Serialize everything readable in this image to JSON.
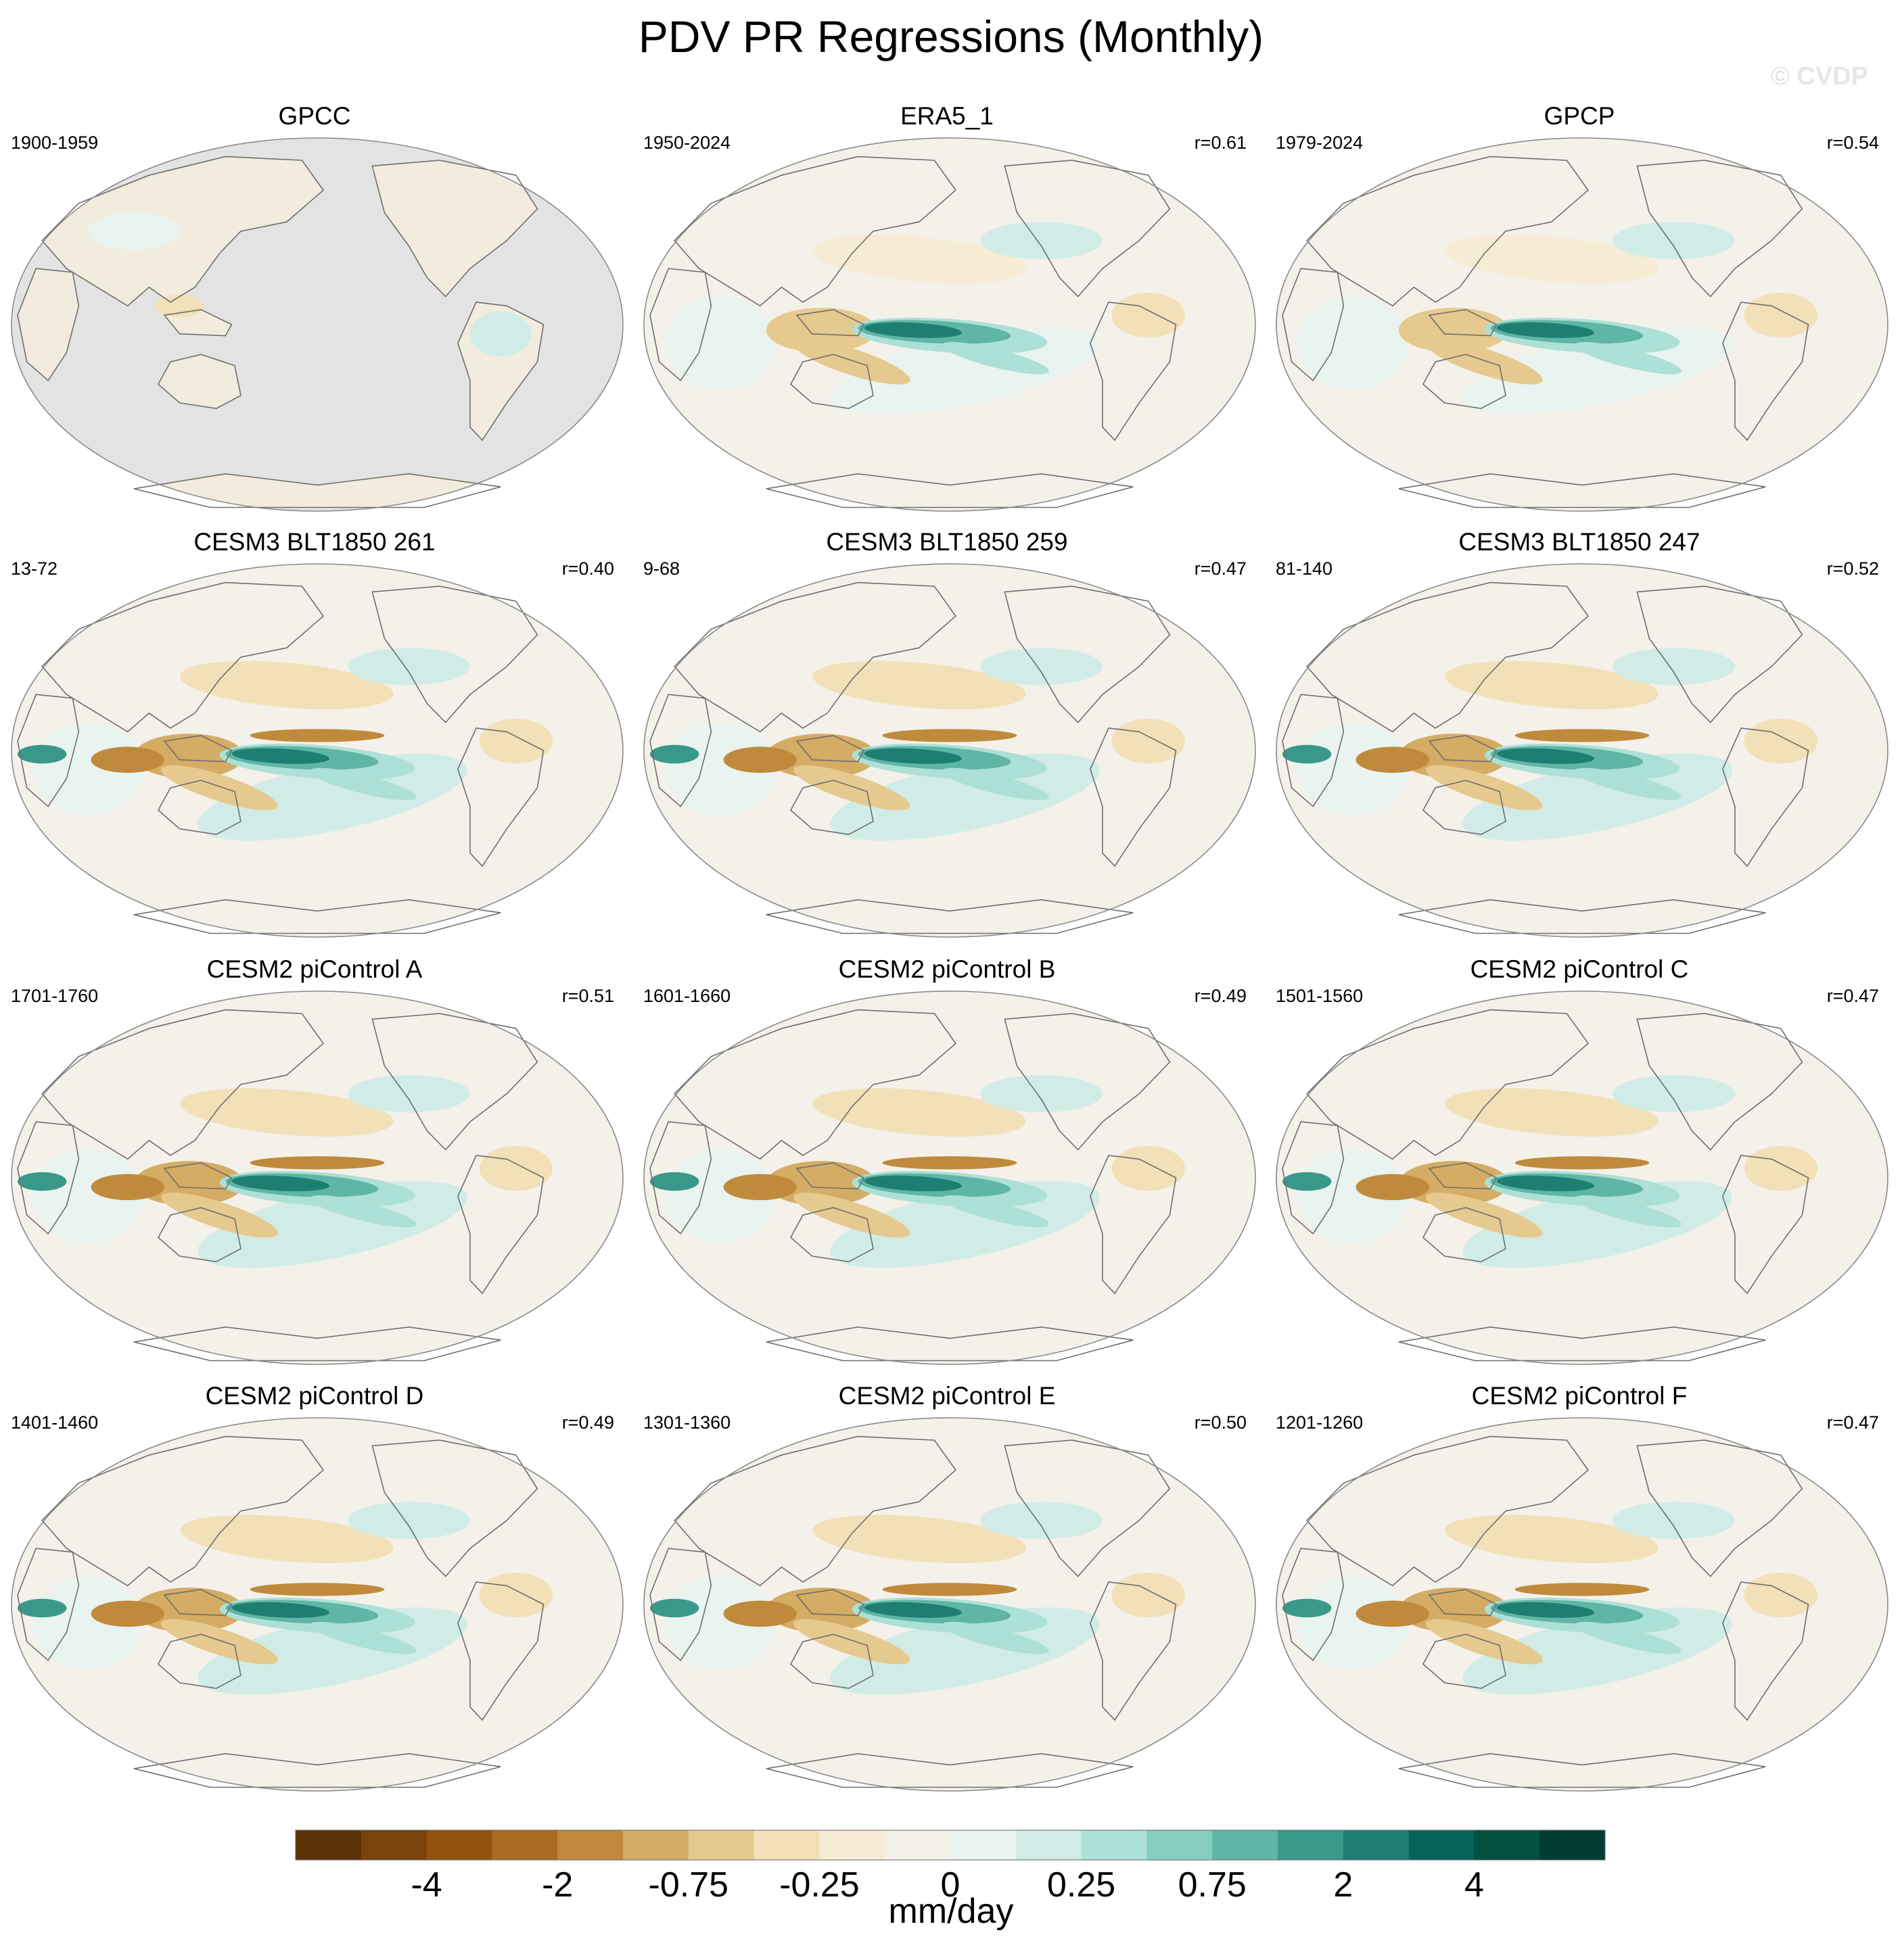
{
  "title": "PDV PR Regressions (Monthly)",
  "watermark": "© CVDP",
  "chart_data": {
    "type": "heatmap",
    "projection": "robinson (pacific-centered)",
    "variable": "PR regression onto PDV",
    "panels": [
      {
        "title": "GPCC",
        "period": "1900-1959",
        "r": "",
        "land_only": true,
        "pattern": 0.18
      },
      {
        "title": "ERA5_1",
        "period": "1950-2024",
        "r": "r=0.61",
        "land_only": false,
        "pattern": 0.75
      },
      {
        "title": "GPCP",
        "period": "1979-2024",
        "r": "r=0.54",
        "land_only": false,
        "pattern": 0.75
      },
      {
        "title": "CESM3 BLT1850 261",
        "period": "13-72",
        "r": "r=0.40",
        "land_only": false,
        "pattern": 1.0
      },
      {
        "title": "CESM3 BLT1850 259",
        "period": "9-68",
        "r": "r=0.47",
        "land_only": false,
        "pattern": 1.0
      },
      {
        "title": "CESM3 BLT1850 247",
        "period": "81-140",
        "r": "r=0.52",
        "land_only": false,
        "pattern": 0.95
      },
      {
        "title": "CESM2 piControl A",
        "period": "1701-1760",
        "r": "r=0.51",
        "land_only": false,
        "pattern": 0.95
      },
      {
        "title": "CESM2 piControl B",
        "period": "1601-1660",
        "r": "r=0.49",
        "land_only": false,
        "pattern": 0.9
      },
      {
        "title": "CESM2 piControl C",
        "period": "1501-1560",
        "r": "r=0.47",
        "land_only": false,
        "pattern": 0.95
      },
      {
        "title": "CESM2 piControl D",
        "period": "1401-1460",
        "r": "r=0.49",
        "land_only": false,
        "pattern": 0.95
      },
      {
        "title": "CESM2 piControl E",
        "period": "1301-1360",
        "r": "r=0.50",
        "land_only": false,
        "pattern": 0.9
      },
      {
        "title": "CESM2 piControl F",
        "period": "1201-1260",
        "r": "r=0.47",
        "land_only": false,
        "pattern": 0.95
      }
    ],
    "colorbar": {
      "units": "mm/day",
      "colors": [
        "#5a3205",
        "#7a430a",
        "#91530f",
        "#a96b22",
        "#c08a3c",
        "#d4ac63",
        "#e6c98f",
        "#f2e0b8",
        "#f5ecd3",
        "#f4f1ea",
        "#e9f3ef",
        "#d1ece6",
        "#ade0d6",
        "#86cdc0",
        "#5fb5a6",
        "#3a988a",
        "#1d7f71",
        "#06645a",
        "#03503f",
        "#003c30"
      ],
      "labels": [
        "-4",
        "-2",
        "-0.75",
        "-0.25",
        "0",
        "0.25",
        "0.75",
        "2",
        "4"
      ]
    },
    "colors": {
      "land_missing": "#e3e3e3",
      "coast": "#6e6e6e"
    }
  }
}
